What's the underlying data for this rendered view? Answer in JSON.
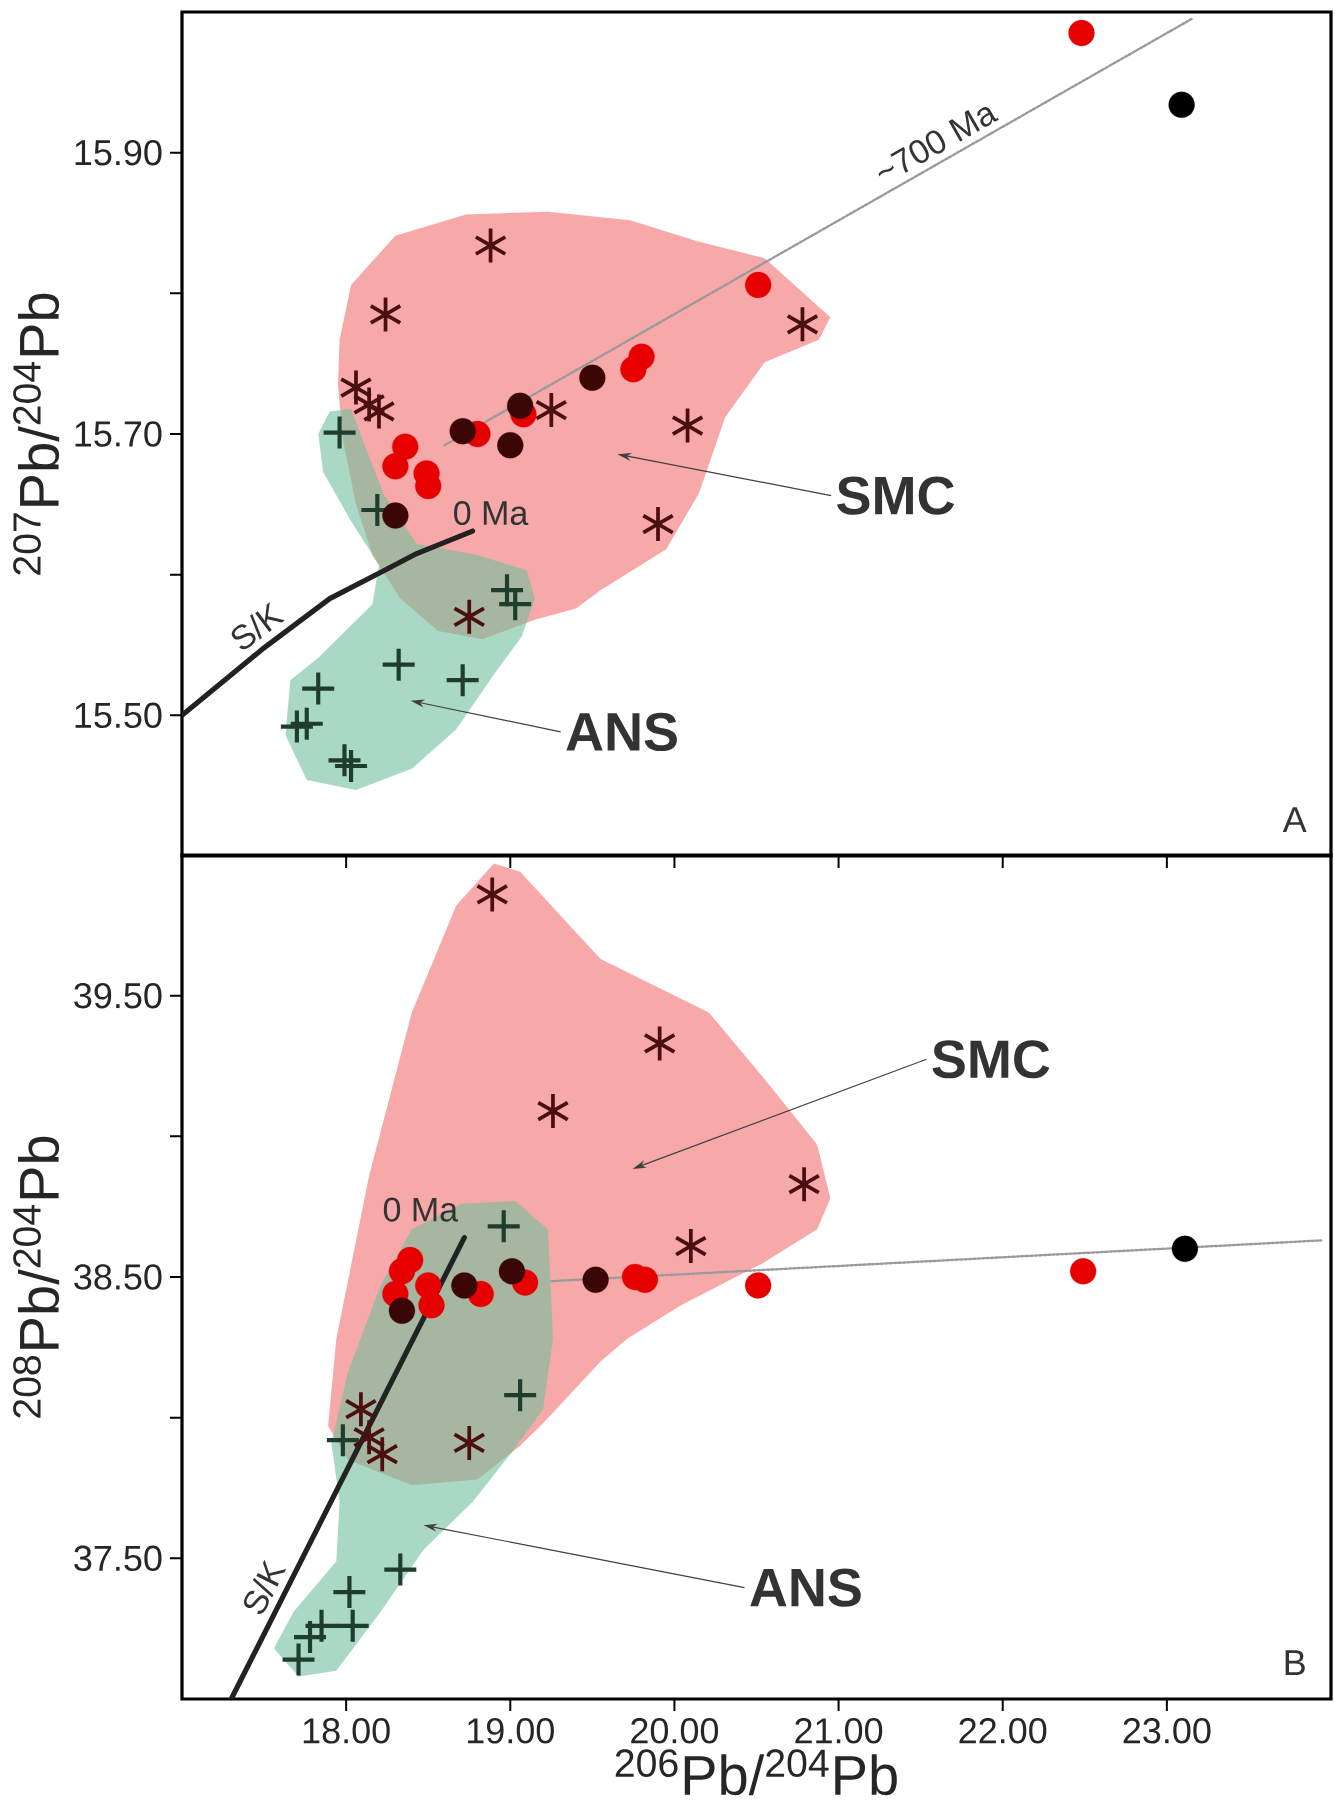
{
  "chart_data": [
    {
      "type": "scatter",
      "ylabel": "$^{207}$Pb/$^{204}$Pb",
      "xlim": [
        17,
        24
      ],
      "ylim": [
        15.4,
        16.0
      ],
      "xticks": [
        {
          "value": 18,
          "label": null
        },
        {
          "value": 19,
          "label": null
        },
        {
          "value": 20,
          "label": null
        },
        {
          "value": 21,
          "label": null
        },
        {
          "value": 22,
          "label": null
        },
        {
          "value": 23,
          "label": null
        }
      ],
      "yticks": [
        {
          "value": 15.5,
          "label": "15.50"
        },
        {
          "value": 15.6,
          "label": null
        },
        {
          "value": 15.7,
          "label": "15.70"
        },
        {
          "value": 15.8,
          "label": null
        },
        {
          "value": 15.9,
          "label": "15.90"
        }
      ],
      "tick_labels": "y",
      "series": [
        {
          "type": "area",
          "color": "#f7a9a9",
          "x": [
            18.03,
            18.3,
            18.73,
            19.23,
            19.73,
            20.14,
            20.55,
            20.95,
            20.88,
            20.55,
            20.31,
            20.15,
            19.95,
            19.55,
            19.4,
            19.15,
            18.83,
            18.56,
            18.33,
            18.16,
            18.06,
            17.98,
            17.95,
            17.96
          ],
          "values": [
            15.806,
            15.841,
            15.856,
            15.858,
            15.852,
            15.837,
            15.825,
            15.783,
            15.767,
            15.751,
            15.712,
            15.658,
            15.618,
            15.589,
            15.576,
            15.568,
            15.554,
            15.56,
            15.583,
            15.614,
            15.65,
            15.696,
            15.735,
            15.767
          ]
        },
        {
          "type": "area",
          "color": "#6fbf9c",
          "x": [
            17.83,
            17.9,
            18.03,
            18.1,
            18.23,
            18.43,
            18.8,
            19.1,
            19.15,
            19.07,
            18.9,
            18.67,
            18.4,
            18.06,
            17.76,
            17.63,
            17.66,
            17.83,
            18.16,
            18.2,
            18.03,
            17.86
          ],
          "values": [
            15.7,
            15.716,
            15.718,
            15.696,
            15.657,
            15.622,
            15.614,
            15.603,
            15.583,
            15.556,
            15.529,
            15.49,
            15.462,
            15.447,
            15.454,
            15.486,
            15.525,
            15.541,
            15.579,
            15.607,
            15.638,
            15.673
          ]
        },
        {
          "type": "line",
          "name": "S/K",
          "color": "#222222",
          "line_style": "solid",
          "marker": "none",
          "x": [
            17.0,
            17.5,
            17.9,
            18.2,
            18.43,
            18.77
          ],
          "values": [
            15.5,
            15.548,
            15.583,
            15.601,
            15.615,
            15.631
          ]
        },
        {
          "type": "line",
          "name": "~700 Ma",
          "color": "#9a9a9a",
          "line_style": "dotted",
          "marker": "none",
          "x": [
            18.6,
            23.15
          ],
          "values": [
            15.692,
            15.995
          ]
        },
        {
          "color": "#1f3d2c",
          "marker": "cross",
          "x": [
            17.96,
            18.19,
            18.98,
            19.03,
            18.32,
            18.71,
            17.83,
            17.7,
            17.76,
            17.99,
            18.03
          ],
          "values": [
            15.701,
            15.646,
            15.589,
            15.579,
            15.536,
            15.525,
            15.519,
            15.492,
            15.494,
            15.468,
            15.464
          ]
        },
        {
          "color": "#4a0f10",
          "marker": "star",
          "x": [
            18.88,
            18.24,
            18.06,
            18.14,
            18.2,
            19.25,
            20.08,
            19.9,
            20.78,
            18.75
          ],
          "values": [
            15.834,
            15.785,
            15.733,
            15.721,
            15.716,
            15.717,
            15.706,
            15.636,
            15.778,
            15.57
          ]
        },
        {
          "color": "#e60000",
          "marker": "circle",
          "x": [
            18.36,
            18.3,
            18.49,
            18.5,
            18.8,
            19.08,
            19.75,
            19.8,
            20.51,
            22.48
          ],
          "values": [
            15.691,
            15.677,
            15.672,
            15.663,
            15.7,
            15.714,
            15.746,
            15.755,
            15.806,
            15.985
          ]
        },
        {
          "color": "#3a0606",
          "marker": "circle",
          "x": [
            18.71,
            19.0,
            19.06,
            19.5,
            18.3
          ],
          "values": [
            15.702,
            15.692,
            15.72,
            15.74,
            15.642
          ]
        },
        {
          "color": "#000000",
          "marker": "circle",
          "x": [
            23.09
          ],
          "values": [
            15.934
          ]
        }
      ],
      "annotations": [
        "SMC",
        "ANS",
        {
          "text": "0 Ma",
          "x": 18.77,
          "y": 15.631
        },
        "A"
      ]
    },
    {
      "type": "scatter",
      "xlabel": "$^{206}$Pb/$^{204}$Pb",
      "ylabel": "$^{208}$Pb/$^{204}$Pb",
      "xlim": [
        17,
        24
      ],
      "ylim": [
        37.0,
        40.0
      ],
      "xticks": [
        {
          "value": 18,
          "label": "18.00"
        },
        {
          "value": 19,
          "label": "19.00"
        },
        {
          "value": 20,
          "label": "20.00"
        },
        {
          "value": 21,
          "label": "21.00"
        },
        {
          "value": 22,
          "label": "22.00"
        },
        {
          "value": 23,
          "label": "23.00"
        }
      ],
      "yticks": [
        {
          "value": 37.5,
          "label": "37.50"
        },
        {
          "value": 38.0,
          "label": null
        },
        {
          "value": 38.5,
          "label": "38.50"
        },
        {
          "value": 39.0,
          "label": null
        },
        {
          "value": 39.5,
          "label": "39.50"
        }
      ],
      "series": [
        {
          "type": "area",
          "color": "#f7a9a9",
          "x": [
            18.9,
            19.06,
            19.55,
            20.21,
            20.54,
            20.87,
            20.95,
            20.87,
            20.54,
            20.04,
            19.71,
            19.55,
            19.2,
            19.06,
            18.8,
            18.4,
            18.01,
            17.89,
            17.94,
            18.14,
            18.4,
            18.67
          ],
          "values": [
            39.97,
            39.94,
            39.63,
            39.44,
            39.21,
            38.97,
            38.78,
            38.67,
            38.55,
            38.4,
            38.28,
            38.2,
            37.98,
            37.9,
            37.78,
            37.76,
            37.85,
            37.97,
            38.28,
            38.86,
            39.44,
            39.82
          ]
        },
        {
          "type": "area",
          "color": "#6fbf9c",
          "x": [
            18.4,
            18.7,
            19.03,
            19.23,
            19.26,
            19.2,
            19.0,
            18.77,
            18.47,
            18.21,
            17.94,
            17.71,
            17.56,
            17.68,
            17.94,
            17.96,
            17.91,
            18.01,
            18.21
          ],
          "values": [
            38.67,
            38.76,
            38.77,
            38.67,
            38.28,
            38.03,
            37.87,
            37.7,
            37.53,
            37.31,
            37.1,
            37.08,
            37.18,
            37.31,
            37.49,
            37.7,
            37.91,
            38.16,
            38.47
          ]
        },
        {
          "type": "line",
          "name": "S/K",
          "color": "#222222",
          "line_style": "solid",
          "marker": "none",
          "x": [
            17.3,
            18.72
          ],
          "values": [
            37.0,
            38.64
          ]
        },
        {
          "type": "line",
          "color": "#9a9a9a",
          "line_style": "dotted",
          "marker": "none",
          "x": [
            19.25,
            23.94
          ],
          "values": [
            38.485,
            38.63
          ]
        },
        {
          "color": "#1f3d2c",
          "marker": "cross",
          "x": [
            18.96,
            19.06,
            17.98,
            18.33,
            18.02,
            18.04,
            17.85,
            17.78,
            17.71
          ],
          "values": [
            38.68,
            38.08,
            37.92,
            37.46,
            37.38,
            37.26,
            37.26,
            37.22,
            37.14
          ]
        },
        {
          "color": "#4a0f10",
          "marker": "star",
          "x": [
            18.89,
            19.26,
            19.91,
            20.1,
            20.79,
            18.09,
            18.14,
            18.22,
            18.75
          ],
          "values": [
            39.86,
            39.09,
            39.33,
            38.61,
            38.83,
            38.03,
            37.93,
            37.87,
            37.91
          ]
        },
        {
          "color": "#e60000",
          "marker": "circle",
          "x": [
            18.39,
            18.34,
            18.3,
            18.5,
            18.52,
            18.82,
            19.09,
            19.76,
            19.82,
            20.51,
            22.49
          ],
          "values": [
            38.56,
            38.52,
            38.44,
            38.47,
            38.4,
            38.44,
            38.48,
            38.5,
            38.49,
            38.47,
            38.52
          ]
        },
        {
          "color": "#3a0606",
          "marker": "circle",
          "x": [
            19.52,
            18.72,
            19.01,
            18.34
          ],
          "values": [
            38.49,
            38.47,
            38.52,
            38.38
          ]
        },
        {
          "color": "#000000",
          "marker": "circle",
          "x": [
            23.11
          ],
          "values": [
            38.6
          ]
        }
      ],
      "annotations": [
        "SMC",
        "ANS",
        {
          "text": "0 Ma",
          "x": 18.72,
          "y": 38.64
        },
        "B"
      ]
    }
  ]
}
